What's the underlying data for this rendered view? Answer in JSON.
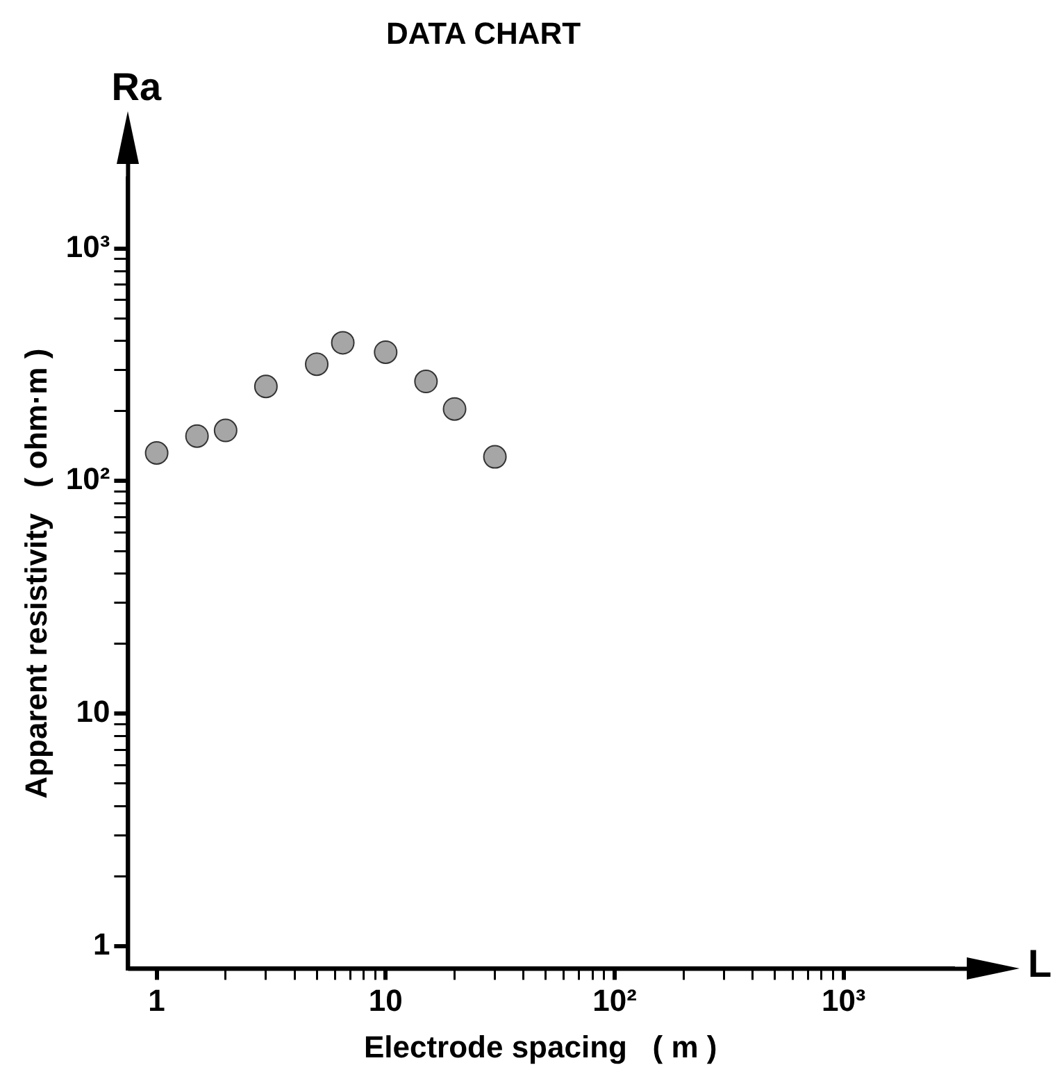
{
  "chart_data": {
    "type": "scatter",
    "title": "DATA CHART",
    "xlabel": "Electrode spacing   ( m )",
    "ylabel": "Apparent resistivity   ( ohm·m )",
    "annotations": [
      "Ra",
      "L"
    ],
    "log": "xy",
    "grid": false,
    "legend": false,
    "marker": "circle",
    "x": [
      1,
      1.5,
      2,
      3,
      5,
      6.5,
      10,
      15,
      20,
      30
    ],
    "series": [
      {
        "color": "#a6a6a6",
        "values": [
          132,
          156,
          165,
          255,
          318,
          393,
          358,
          268,
          204,
          127
        ]
      }
    ],
    "xlim": [
      0.75,
      3000
    ],
    "ylim": [
      0.8,
      2000
    ],
    "xticks": [
      {
        "value": 1,
        "label": "1"
      },
      {
        "value": 2,
        "label": null
      },
      {
        "value": 3,
        "label": null
      },
      {
        "value": 4,
        "label": null
      },
      {
        "value": 5,
        "label": null
      },
      {
        "value": 6,
        "label": null
      },
      {
        "value": 7,
        "label": null
      },
      {
        "value": 8,
        "label": null
      },
      {
        "value": 9,
        "label": null
      },
      {
        "value": 10,
        "label": "10"
      },
      {
        "value": 20,
        "label": null
      },
      {
        "value": 30,
        "label": null
      },
      {
        "value": 40,
        "label": null
      },
      {
        "value": 50,
        "label": null
      },
      {
        "value": 60,
        "label": null
      },
      {
        "value": 70,
        "label": null
      },
      {
        "value": 80,
        "label": null
      },
      {
        "value": 90,
        "label": null
      },
      {
        "value": 100,
        "label": "10²"
      },
      {
        "value": 200,
        "label": null
      },
      {
        "value": 300,
        "label": null
      },
      {
        "value": 400,
        "label": null
      },
      {
        "value": 500,
        "label": null
      },
      {
        "value": 600,
        "label": null
      },
      {
        "value": 700,
        "label": null
      },
      {
        "value": 800,
        "label": null
      },
      {
        "value": 900,
        "label": null
      },
      {
        "value": 1000,
        "label": "10³"
      }
    ],
    "yticks": [
      {
        "value": 1,
        "label": "1"
      },
      {
        "value": 2,
        "label": null
      },
      {
        "value": 3,
        "label": null
      },
      {
        "value": 4,
        "label": null
      },
      {
        "value": 5,
        "label": null
      },
      {
        "value": 6,
        "label": null
      },
      {
        "value": 7,
        "label": null
      },
      {
        "value": 8,
        "label": null
      },
      {
        "value": 9,
        "label": null
      },
      {
        "value": 10,
        "label": "10"
      },
      {
        "value": 20,
        "label": null
      },
      {
        "value": 30,
        "label": null
      },
      {
        "value": 40,
        "label": null
      },
      {
        "value": 50,
        "label": null
      },
      {
        "value": 60,
        "label": null
      },
      {
        "value": 70,
        "label": null
      },
      {
        "value": 80,
        "label": null
      },
      {
        "value": 90,
        "label": null
      },
      {
        "value": 100,
        "label": "10²"
      },
      {
        "value": 200,
        "label": null
      },
      {
        "value": 300,
        "label": null
      },
      {
        "value": 400,
        "label": null
      },
      {
        "value": 500,
        "label": null
      },
      {
        "value": 600,
        "label": null
      },
      {
        "value": 700,
        "label": null
      },
      {
        "value": 800,
        "label": null
      },
      {
        "value": 900,
        "label": null
      },
      {
        "value": 1000,
        "label": "10³"
      }
    ]
  }
}
